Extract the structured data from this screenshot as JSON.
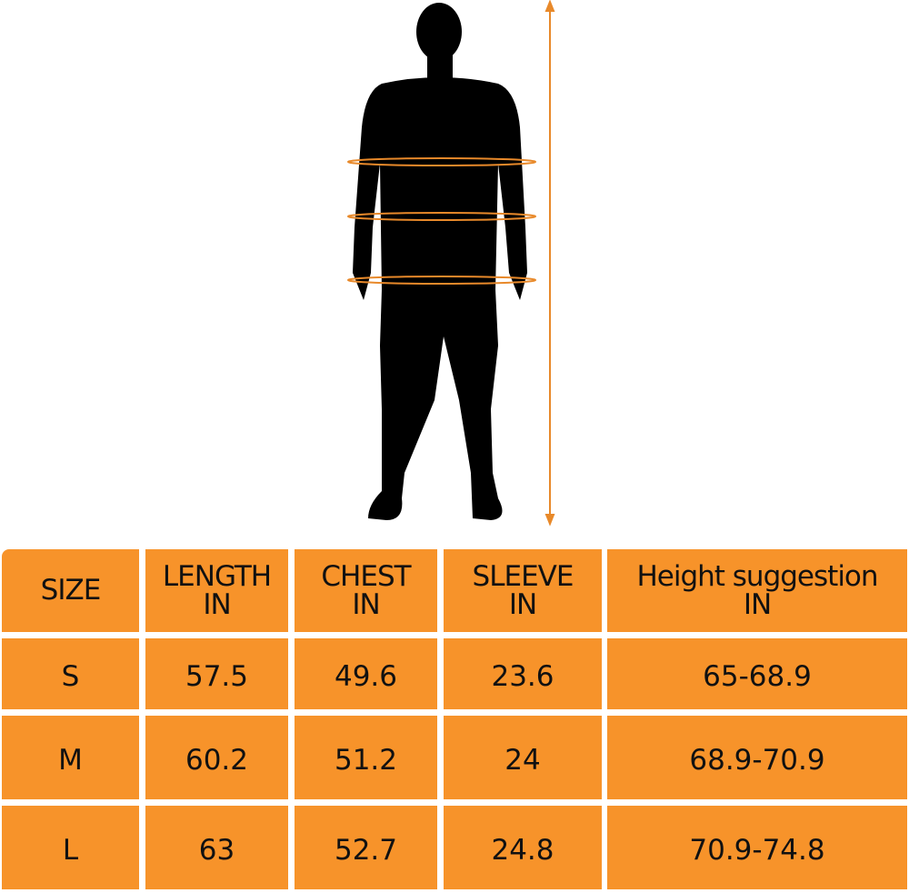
{
  "colors": {
    "cell_fill": "#F7932A",
    "measure_lines": "#E8892A",
    "silhouette": "#000000"
  },
  "figure": {
    "icon": "person-silhouette-icon"
  },
  "table": {
    "headers": [
      {
        "line1": "SIZE",
        "line2": ""
      },
      {
        "line1": "LENGTH",
        "line2": "IN"
      },
      {
        "line1": "CHEST",
        "line2": "IN"
      },
      {
        "line1": "SLEEVE",
        "line2": "IN"
      },
      {
        "line1": "Height suggestion",
        "line2": "IN"
      }
    ],
    "rows": [
      [
        "S",
        "57.5",
        "49.6",
        "23.6",
        "65-68.9"
      ],
      [
        "M",
        "60.2",
        "51.2",
        "24",
        "68.9-70.9"
      ],
      [
        "L",
        "63",
        "52.7",
        "24.8",
        "70.9-74.8"
      ]
    ]
  }
}
